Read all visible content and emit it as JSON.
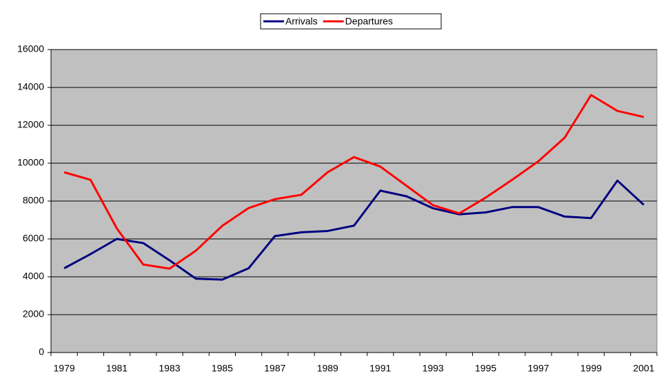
{
  "chart_data": {
    "type": "line",
    "categories": [
      "1979",
      null,
      "1981",
      null,
      "1983",
      null,
      "1985",
      null,
      "1987",
      null,
      "1989",
      null,
      "1991",
      null,
      "1993",
      null,
      "1995",
      null,
      "1997",
      null,
      "1999",
      null,
      "2001"
    ],
    "series": [
      {
        "name": "Arrivals",
        "color": "#000080",
        "values": [
          4450,
          5200,
          6000,
          5780,
          4870,
          3900,
          3850,
          4450,
          6150,
          6350,
          6420,
          6700,
          8550,
          8250,
          7620,
          7300,
          7400,
          7680,
          7680,
          7180,
          7100,
          9080,
          7800
        ]
      },
      {
        "name": "Departures",
        "color": "#ff0000",
        "values": [
          9520,
          9120,
          6550,
          4650,
          4430,
          5380,
          6690,
          7630,
          8100,
          8330,
          9520,
          10320,
          9820,
          8800,
          7780,
          7350,
          8180,
          9120,
          10100,
          11350,
          13600,
          12760,
          12440
        ]
      }
    ],
    "ylim": [
      0,
      16000
    ],
    "yticks": [
      0,
      2000,
      4000,
      6000,
      8000,
      10000,
      12000,
      14000,
      16000
    ],
    "grid": true,
    "legend": "top",
    "background": "#c0c0c0"
  }
}
